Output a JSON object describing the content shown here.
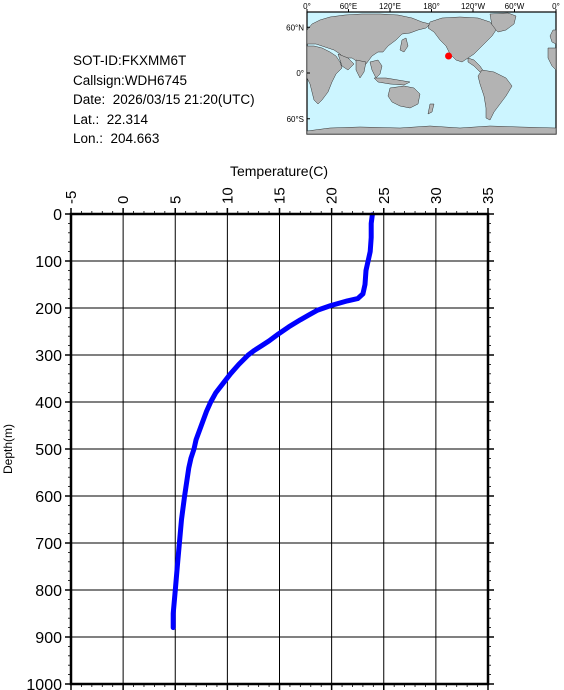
{
  "info": {
    "sot_id": "SOT-ID:FKXMM6T",
    "callsign": "Callsign:WDH6745",
    "date": "Date:  2026/03/15 21:20(UTC)",
    "lat": "Lat.:  22.314",
    "lon": "Lon.:  204.663"
  },
  "map": {
    "lon_labels": [
      "0°",
      "60°E",
      "120°E",
      "180°",
      "120°W",
      "60°W",
      "0°"
    ],
    "lat_labels": [
      "60°N",
      "0°",
      "60°S"
    ],
    "marker": {
      "lat": 22.314,
      "lon": 204.663,
      "color": "#ff0000"
    },
    "ocean_color": "#ccf5ff",
    "land_color": "#b3b3b3"
  },
  "chart_data": {
    "type": "line",
    "xlabel": "Temperature(C)",
    "ylabel": "Depth(m)",
    "xlim": [
      -5,
      35
    ],
    "ylim": [
      0,
      1000
    ],
    "x_ticks": [
      "-5",
      "0",
      "5",
      "10",
      "15",
      "20",
      "25",
      "30",
      "35"
    ],
    "y_ticks": [
      "0",
      "100",
      "200",
      "300",
      "400",
      "500",
      "600",
      "700",
      "800",
      "900",
      "1000"
    ],
    "grid": true,
    "line_color": "#0000ff",
    "series": [
      {
        "depth": [
          2,
          20,
          50,
          80,
          100,
          120,
          150,
          170,
          180,
          185,
          195,
          205,
          215,
          225,
          240,
          255,
          270,
          280,
          290,
          300,
          320,
          340,
          360,
          380,
          400,
          420,
          450,
          480,
          500,
          520,
          540,
          570,
          600,
          650,
          700,
          750,
          800,
          850,
          880
        ],
        "temperature": [
          23.9,
          23.8,
          23.8,
          23.7,
          23.5,
          23.3,
          23.2,
          23.0,
          22.5,
          21.5,
          19.9,
          18.6,
          17.8,
          17.0,
          15.9,
          14.9,
          14.0,
          13.3,
          12.6,
          12.0,
          11.1,
          10.3,
          9.6,
          8.9,
          8.4,
          8.0,
          7.5,
          7.0,
          6.8,
          6.5,
          6.3,
          6.1,
          5.9,
          5.6,
          5.4,
          5.2,
          5.0,
          4.8,
          4.8
        ]
      }
    ]
  }
}
